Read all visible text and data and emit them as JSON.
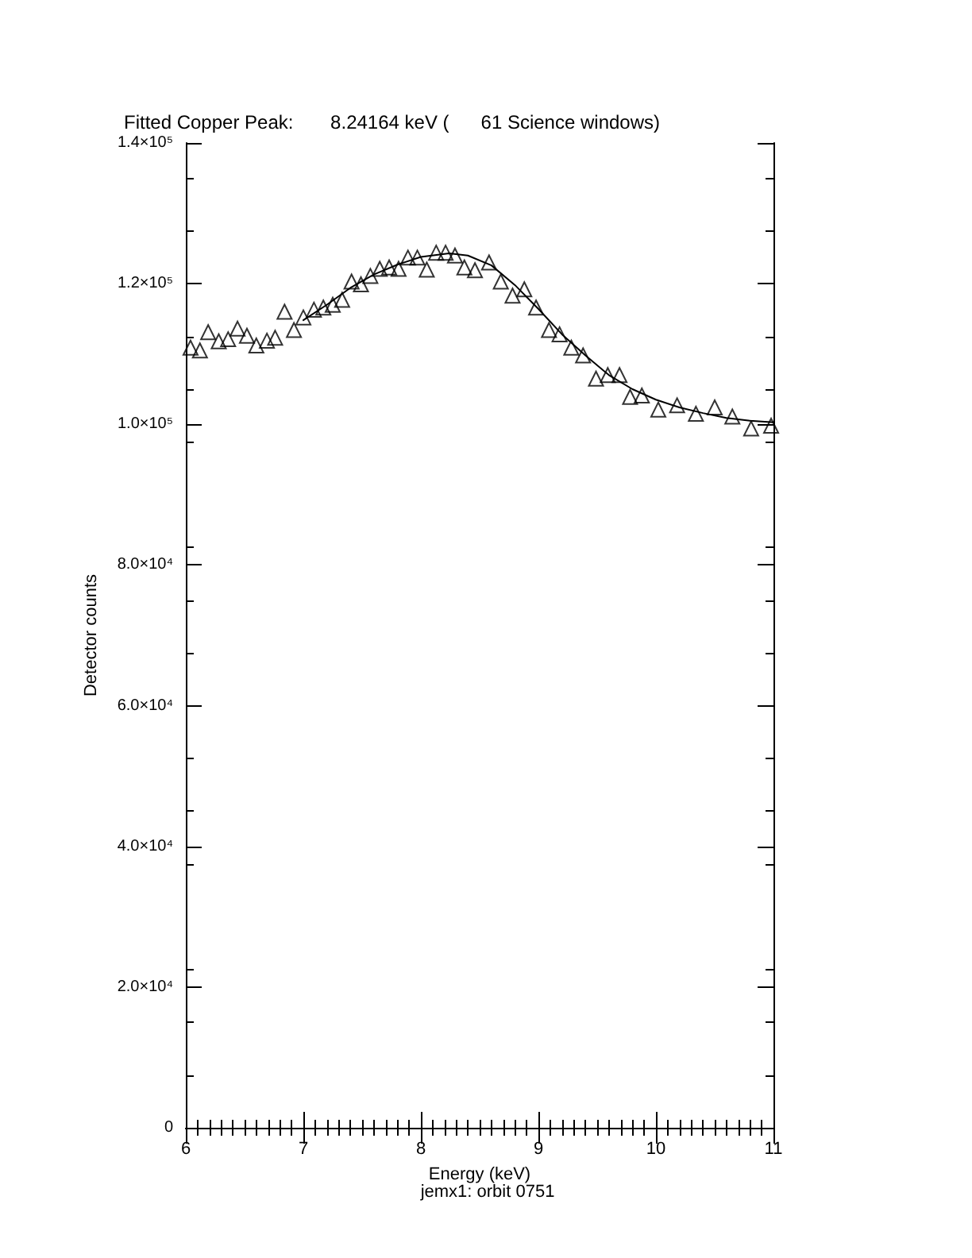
{
  "chart_data": {
    "type": "scatter",
    "title": "Fitted Copper Peak:       8.24164 keV (      61 Science windows)",
    "xlabel": "Energy (keV)",
    "ylabel": "Detector counts",
    "annotations": [
      "jemx1: orbit 0751"
    ],
    "xlim": [
      6,
      11
    ],
    "xticks": [
      6,
      7,
      8,
      9,
      10,
      11
    ],
    "ylim": [
      0,
      140000
    ],
    "yticks": [
      {
        "value": 0,
        "label": "0"
      },
      {
        "value": 20000,
        "label": "2.0×10⁴"
      },
      {
        "value": 40000,
        "label": "4.0×10⁴"
      },
      {
        "value": 60000,
        "label": "6.0×10⁴"
      },
      {
        "value": 80000,
        "label": "8.0×10⁴"
      },
      {
        "value": 100000,
        "label": "1.0×10⁵"
      },
      {
        "value": 120000,
        "label": "1.2×10⁵"
      },
      {
        "value": 140000,
        "label": "1.4×10⁵"
      }
    ],
    "grid": false,
    "series": [
      {
        "marker": "triangle",
        "color": "#000000",
        "x": [
          6.04,
          6.12,
          6.19,
          6.28,
          6.36,
          6.44,
          6.52,
          6.6,
          6.69,
          6.76,
          6.84,
          6.92,
          7.0,
          7.09,
          7.17,
          7.25,
          7.33,
          7.41,
          7.49,
          7.57,
          7.65,
          7.73,
          7.81,
          7.89,
          7.97,
          8.05,
          8.13,
          8.21,
          8.29,
          8.37,
          8.46,
          8.58,
          8.68,
          8.78,
          8.88,
          8.98,
          9.09,
          9.18,
          9.28,
          9.38,
          9.49,
          9.59,
          9.69,
          9.78,
          9.88,
          10.02,
          10.18,
          10.34,
          10.5,
          10.65,
          10.81,
          10.98
        ],
        "values": [
          110900,
          110500,
          113100,
          111800,
          112100,
          113600,
          112600,
          111200,
          111900,
          112300,
          116000,
          113400,
          115200,
          116300,
          116600,
          117000,
          117700,
          120300,
          119900,
          121100,
          122100,
          122300,
          122100,
          123700,
          123700,
          122000,
          124400,
          124400,
          124000,
          122300,
          121900,
          123000,
          120300,
          118300,
          119200,
          116600,
          113400,
          112800,
          110900,
          109800,
          106500,
          107000,
          107000,
          103900,
          104100,
          102100,
          102700,
          101500,
          102400,
          101100,
          99400,
          99800
        ]
      },
      {
        "type": "line",
        "marker": "none",
        "line_style": "solid",
        "color": "#000000",
        "x": [
          7.0,
          7.2,
          7.4,
          7.6,
          7.8,
          8.0,
          8.24,
          8.4,
          8.6,
          8.8,
          9.0,
          9.2,
          9.4,
          9.6,
          9.8,
          10.0,
          10.2,
          10.4,
          10.6,
          10.8,
          11.0
        ],
        "values": [
          114800,
          117000,
          119400,
          121300,
          122700,
          123800,
          124300,
          124000,
          122600,
          119800,
          116400,
          112800,
          109800,
          107000,
          105000,
          103500,
          102400,
          101600,
          100900,
          100500,
          100300
        ]
      }
    ]
  }
}
